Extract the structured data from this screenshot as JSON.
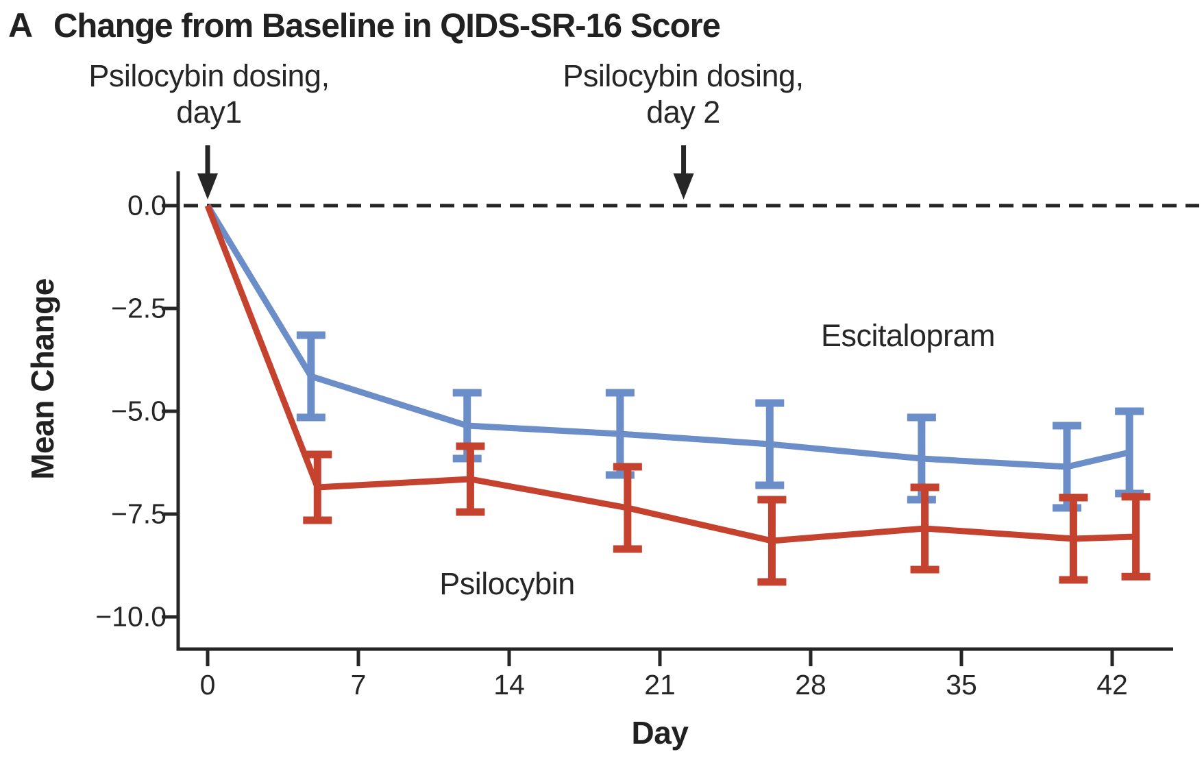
{
  "title": {
    "panel_letter": "A",
    "text": "Change from Baseline in QIDS-SR-16 Score"
  },
  "annotations": {
    "dosing1": {
      "line1": "Psilocybin dosing,",
      "line2": "day1"
    },
    "dosing2": {
      "line1": "Psilocybin dosing,",
      "line2": "day 2"
    }
  },
  "series_labels": {
    "escitalopram": "Escitalopram",
    "psilocybin": "Psilocybin"
  },
  "axes": {
    "x": {
      "label": "Day",
      "tick_labels": [
        "0",
        "7",
        "14",
        "21",
        "28",
        "35",
        "42"
      ],
      "tick_values": [
        0,
        7,
        14,
        21,
        28,
        35,
        42
      ]
    },
    "y": {
      "label": "Mean Change",
      "tick_labels": [
        "0.0",
        "−2.5",
        "−5.0",
        "−7.5",
        "−10.0"
      ],
      "tick_values": [
        0,
        -2.5,
        -5,
        -7.5,
        -10
      ]
    }
  },
  "colors": {
    "escitalopram": "#6b8ec8",
    "psilocybin": "#c5432e",
    "axis": "#262626"
  },
  "chart_data": {
    "type": "line",
    "title": "Change from Baseline in QIDS-SR-16 Score",
    "xlabel": "Day",
    "ylabel": "Mean Change",
    "xlim": [
      -1.4,
      45.1
    ],
    "ylim": [
      -10.8,
      0.85
    ],
    "x_ticks": [
      0,
      7,
      14,
      21,
      28,
      35,
      42
    ],
    "y_ticks": [
      0,
      -2.5,
      -5,
      -7.5,
      -10
    ],
    "grid": false,
    "zero_baseline_dashed": 0,
    "legend_position": "inline-text-labels",
    "series": [
      {
        "name": "Escitalopram",
        "color": "#6b8ec8",
        "x": [
          0,
          4.8,
          12.05,
          19.15,
          26.1,
          33.15,
          39.9,
          42.8
        ],
        "y": [
          0,
          -4.15,
          -5.35,
          -5.55,
          -5.8,
          -6.15,
          -6.35,
          -6.0
        ],
        "err": [
          null,
          1.0,
          0.8,
          1.0,
          1.0,
          1.0,
          1.0,
          1.0
        ]
      },
      {
        "name": "Psilocybin",
        "color": "#c5432e",
        "x": [
          0,
          5.1,
          12.2,
          19.5,
          26.2,
          33.3,
          40.2,
          43.1
        ],
        "y": [
          0,
          -6.85,
          -6.65,
          -7.35,
          -8.15,
          -7.85,
          -8.1,
          -8.05
        ],
        "err": [
          null,
          0.8,
          0.8,
          1.0,
          1.0,
          1.0,
          1.0,
          0.97
        ]
      }
    ],
    "events": [
      {
        "label": "Psilocybin dosing, day1",
        "day": 0
      },
      {
        "label": "Psilocybin dosing, day 2",
        "day": 22.1
      }
    ]
  }
}
